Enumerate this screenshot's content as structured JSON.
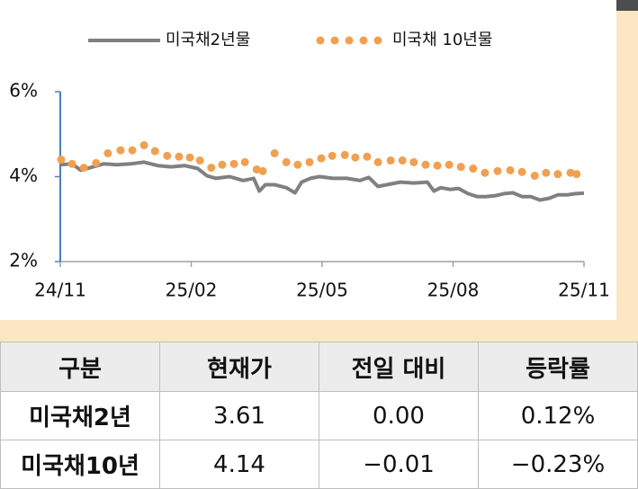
{
  "chart_data": {
    "type": "line",
    "legend": "top",
    "grid": false,
    "xlim": [
      0,
      12
    ],
    "xticks": [
      {
        "value": 0,
        "label": "24/11"
      },
      {
        "value": 3,
        "label": "25/02"
      },
      {
        "value": 6,
        "label": "25/05"
      },
      {
        "value": 9,
        "label": "25/08"
      },
      {
        "value": 12,
        "label": "25/11"
      }
    ],
    "ylim": [
      2,
      6
    ],
    "yticks": [
      {
        "value": 2,
        "label": "2%"
      },
      {
        "value": 4,
        "label": "4%"
      },
      {
        "value": 6,
        "label": "6%"
      }
    ],
    "series": [
      {
        "name": "미국채2년물",
        "color": "#808080",
        "style": "line",
        "x": [
          0,
          0.27,
          0.47,
          0.68,
          0.99,
          1.3,
          1.61,
          1.92,
          2.23,
          2.54,
          2.85,
          3.15,
          3.36,
          3.57,
          3.88,
          4.19,
          4.43,
          4.56,
          4.7,
          4.91,
          5.18,
          5.38,
          5.53,
          5.73,
          5.94,
          6.25,
          6.56,
          6.87,
          7.07,
          7.28,
          7.48,
          7.79,
          8.1,
          8.41,
          8.56,
          8.72,
          8.93,
          9.13,
          9.34,
          9.55,
          9.75,
          9.96,
          10.17,
          10.37,
          10.58,
          10.78,
          10.99,
          11.2,
          11.4,
          11.61,
          11.81,
          12.0
        ],
        "values": [
          4.28,
          4.3,
          4.15,
          4.21,
          4.3,
          4.28,
          4.3,
          4.34,
          4.26,
          4.23,
          4.26,
          4.19,
          4.02,
          3.96,
          4.0,
          3.91,
          3.96,
          3.66,
          3.81,
          3.81,
          3.74,
          3.62,
          3.87,
          3.96,
          4.0,
          3.96,
          3.96,
          3.91,
          3.98,
          3.77,
          3.81,
          3.87,
          3.85,
          3.87,
          3.66,
          3.74,
          3.7,
          3.72,
          3.6,
          3.53,
          3.53,
          3.55,
          3.6,
          3.62,
          3.53,
          3.53,
          3.45,
          3.49,
          3.57,
          3.57,
          3.6,
          3.61
        ]
      },
      {
        "name": "미국채 10년물",
        "color": "#f0a050",
        "style": "dots",
        "x": [
          0.02,
          0.27,
          0.54,
          0.82,
          1.09,
          1.38,
          1.65,
          1.92,
          2.17,
          2.45,
          2.72,
          2.97,
          3.2,
          3.46,
          3.71,
          3.98,
          4.23,
          4.5,
          4.64,
          4.91,
          5.18,
          5.44,
          5.71,
          5.98,
          6.23,
          6.52,
          6.76,
          7.03,
          7.28,
          7.57,
          7.84,
          8.1,
          8.37,
          8.64,
          8.91,
          9.18,
          9.46,
          9.73,
          10.02,
          10.31,
          10.58,
          10.87,
          11.13,
          11.4,
          11.69,
          11.83
        ],
        "values": [
          4.4,
          4.3,
          4.21,
          4.32,
          4.55,
          4.62,
          4.62,
          4.74,
          4.6,
          4.49,
          4.47,
          4.45,
          4.38,
          4.21,
          4.28,
          4.3,
          4.34,
          4.17,
          4.13,
          4.55,
          4.34,
          4.28,
          4.34,
          4.43,
          4.49,
          4.51,
          4.45,
          4.47,
          4.34,
          4.38,
          4.38,
          4.34,
          4.28,
          4.26,
          4.28,
          4.23,
          4.19,
          4.09,
          4.13,
          4.15,
          4.11,
          4.02,
          4.09,
          4.06,
          4.09,
          4.06
        ]
      }
    ]
  },
  "table": {
    "header": [
      "구분",
      "현재가",
      "전일 대비",
      "등락률"
    ],
    "rows": [
      [
        "미국채2년",
        "3.61",
        "0.00",
        "0.12%"
      ],
      [
        "미국채10년",
        "4.14",
        "−0.01",
        "−0.23%"
      ]
    ]
  }
}
